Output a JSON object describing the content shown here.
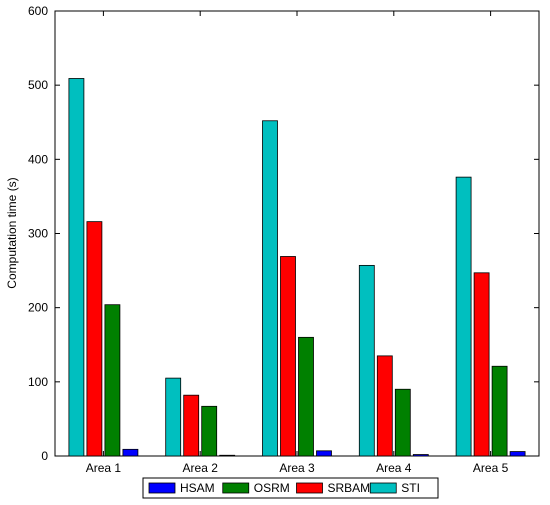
{
  "chart_data": {
    "type": "bar",
    "title": "",
    "xlabel": "",
    "ylabel": "Computation time (s)",
    "ylim": [
      0,
      600
    ],
    "yticks": [
      0,
      100,
      200,
      300,
      400,
      500,
      600
    ],
    "grid": false,
    "legend_position": "bottom",
    "categories": [
      "Area 1",
      "Area 2",
      "Area 3",
      "Area 4",
      "Area 5"
    ],
    "bar_order": [
      "STI",
      "SRBAM",
      "OSRM",
      "HSAM"
    ],
    "series": [
      {
        "name": "HSAM",
        "color": "#0000ff",
        "values": [
          9,
          1,
          7,
          2,
          6
        ]
      },
      {
        "name": "OSRM",
        "color": "#008000",
        "values": [
          204,
          67,
          160,
          90,
          121
        ]
      },
      {
        "name": "SRBAM",
        "color": "#ff0000",
        "values": [
          316,
          82,
          269,
          135,
          247
        ]
      },
      {
        "name": "STI",
        "color": "#00bfbf",
        "values": [
          509,
          105,
          452,
          257,
          376
        ]
      }
    ]
  }
}
